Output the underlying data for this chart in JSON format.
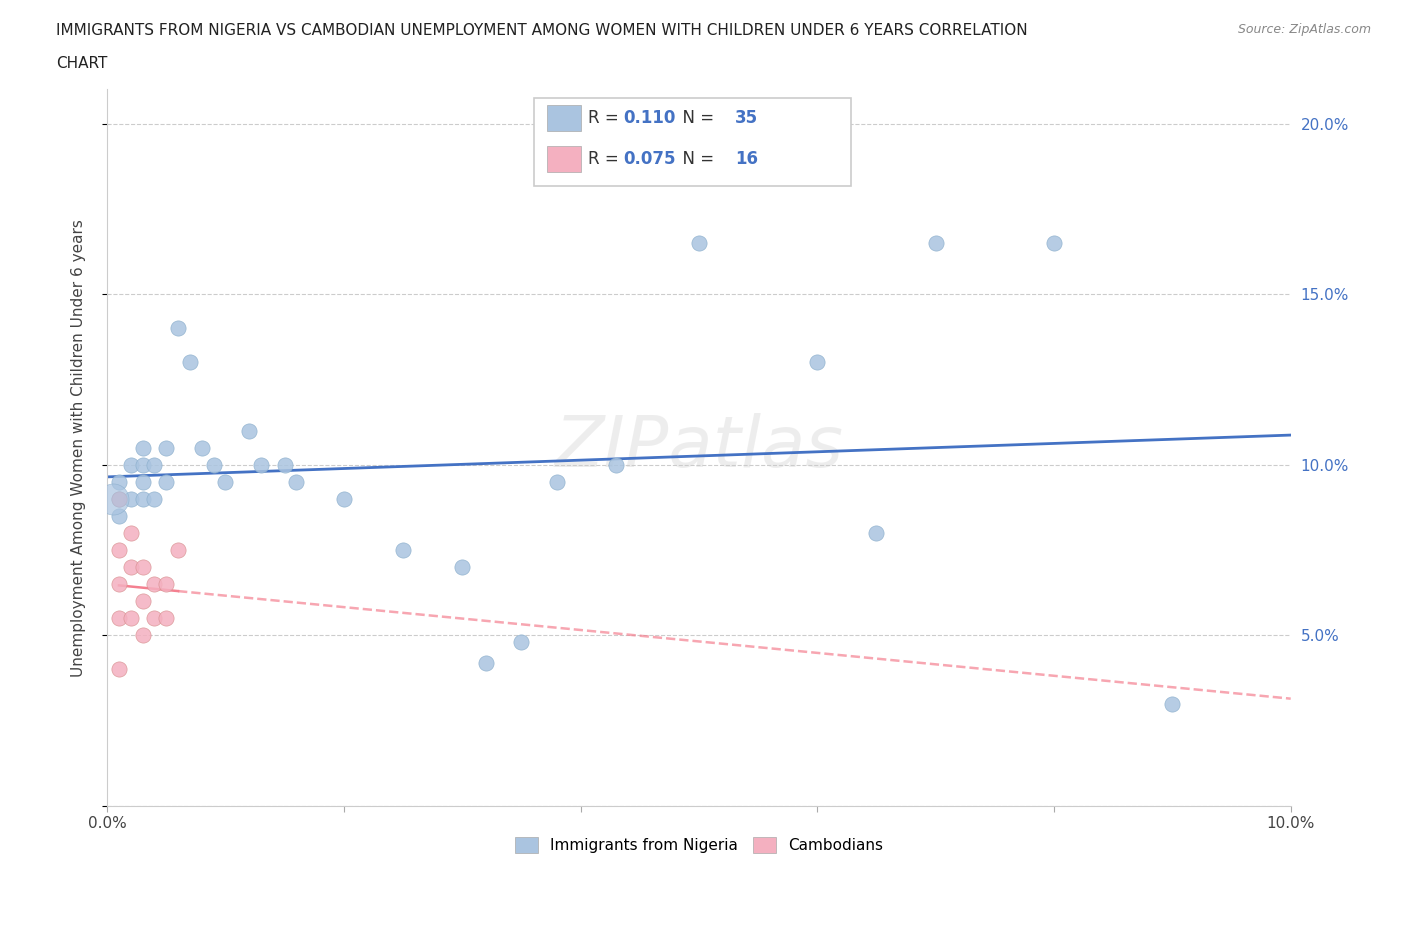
{
  "title_line1": "IMMIGRANTS FROM NIGERIA VS CAMBODIAN UNEMPLOYMENT AMONG WOMEN WITH CHILDREN UNDER 6 YEARS CORRELATION",
  "title_line2": "CHART",
  "source": "Source: ZipAtlas.com",
  "ylabel": "Unemployment Among Women with Children Under 6 years",
  "xlim": [
    0.0,
    0.1
  ],
  "ylim": [
    0.0,
    0.21
  ],
  "xticks": [
    0.0,
    0.02,
    0.04,
    0.06,
    0.08,
    0.1
  ],
  "yticks": [
    0.0,
    0.05,
    0.1,
    0.15,
    0.2
  ],
  "nigeria_R": "0.110",
  "nigeria_N": "35",
  "cambodian_R": "0.075",
  "cambodian_N": "16",
  "nigeria_color": "#aac4e0",
  "cambodian_color": "#f4b0c0",
  "nigeria_line_color": "#4472c4",
  "cambodian_line_color": "#f48090",
  "watermark": "ZIPatlas",
  "nigeria_x": [
    0.001,
    0.001,
    0.001,
    0.002,
    0.002,
    0.003,
    0.003,
    0.003,
    0.003,
    0.004,
    0.004,
    0.005,
    0.005,
    0.006,
    0.007,
    0.008,
    0.009,
    0.01,
    0.012,
    0.013,
    0.015,
    0.016,
    0.02,
    0.025,
    0.03,
    0.032,
    0.035,
    0.038,
    0.043,
    0.05,
    0.06,
    0.065,
    0.07,
    0.08,
    0.09
  ],
  "nigeria_y": [
    0.095,
    0.09,
    0.085,
    0.1,
    0.09,
    0.105,
    0.1,
    0.095,
    0.09,
    0.1,
    0.09,
    0.105,
    0.095,
    0.14,
    0.13,
    0.105,
    0.1,
    0.095,
    0.11,
    0.1,
    0.1,
    0.095,
    0.09,
    0.075,
    0.07,
    0.042,
    0.048,
    0.095,
    0.1,
    0.165,
    0.13,
    0.08,
    0.165,
    0.165,
    0.03
  ],
  "cambodian_x": [
    0.001,
    0.001,
    0.001,
    0.001,
    0.001,
    0.002,
    0.002,
    0.002,
    0.003,
    0.003,
    0.003,
    0.004,
    0.004,
    0.005,
    0.005,
    0.006
  ],
  "cambodian_y": [
    0.09,
    0.075,
    0.065,
    0.055,
    0.04,
    0.08,
    0.07,
    0.055,
    0.07,
    0.06,
    0.05,
    0.065,
    0.055,
    0.065,
    0.055,
    0.075
  ]
}
